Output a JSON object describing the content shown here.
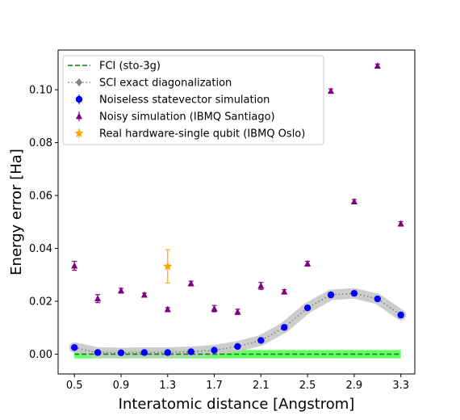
{
  "chart_data": {
    "type": "scatter",
    "xlabel": "Interatomic distance [Angstrom]",
    "ylabel": "Energy error [Ha]",
    "xlim": [
      0.36,
      3.42
    ],
    "ylim": [
      -0.0075,
      0.115
    ],
    "x_ticks": [
      0.5,
      0.9,
      1.3,
      1.7,
      2.1,
      2.5,
      2.9,
      3.3
    ],
    "x_tick_labels": [
      "0.5",
      "0.9",
      "1.3",
      "1.7",
      "2.1",
      "2.5",
      "2.9",
      "3.3"
    ],
    "y_ticks": [
      0.0,
      0.02,
      0.04,
      0.06,
      0.08,
      0.1
    ],
    "y_tick_labels": [
      "0.00",
      "0.02",
      "0.04",
      "0.06",
      "0.08",
      "0.10"
    ],
    "grid": false,
    "legend_position": "top-left",
    "series": [
      {
        "name": "FCI (sto-3g)",
        "style": "dashed-line",
        "color": "#008000",
        "band_color": "#66ff66",
        "band_halfwidth": 0.0016,
        "x": [
          0.5,
          3.3
        ],
        "y": [
          0.0,
          0.0
        ]
      },
      {
        "name": "SCI exact diagonalization",
        "style": "dotted-line-diamond",
        "color": "#808080",
        "band_color": "#c8c8c8",
        "x": [
          0.5,
          0.7,
          0.9,
          1.1,
          1.3,
          1.5,
          1.7,
          1.9,
          2.1,
          2.3,
          2.5,
          2.7,
          2.9,
          3.1,
          3.3
        ],
        "y": [
          0.0025,
          0.0006,
          0.0005,
          0.0006,
          0.0006,
          0.0009,
          0.0015,
          0.0029,
          0.0052,
          0.0101,
          0.0175,
          0.0224,
          0.023,
          0.0209,
          0.0148
        ]
      },
      {
        "name": "Noiseless statevector simulation",
        "style": "circle-errorbar",
        "color": "#0000ff",
        "x": [
          0.5,
          0.7,
          0.9,
          1.1,
          1.3,
          1.5,
          1.7,
          1.9,
          2.1,
          2.3,
          2.5,
          2.7,
          2.9,
          3.1,
          3.3
        ],
        "y": [
          0.0025,
          0.0006,
          0.0005,
          0.0006,
          0.0006,
          0.0009,
          0.0015,
          0.0029,
          0.0052,
          0.0101,
          0.0175,
          0.0224,
          0.023,
          0.0209,
          0.0148
        ],
        "err": [
          0.0006,
          0.0005,
          0.0005,
          0.0005,
          0.0005,
          0.0005,
          0.0005,
          0.0006,
          0.0007,
          0.0007,
          0.0008,
          0.0008,
          0.0008,
          0.0008,
          0.0009
        ]
      },
      {
        "name": "Noisy simulation (IBMQ Santiago)",
        "style": "triangle-errorbar",
        "color": "#800080",
        "x": [
          0.5,
          0.7,
          0.9,
          1.1,
          1.3,
          1.5,
          1.7,
          1.9,
          2.1,
          2.3,
          2.5,
          2.7,
          2.9,
          3.1,
          3.3
        ],
        "y": [
          0.0334,
          0.021,
          0.024,
          0.0224,
          0.0169,
          0.0267,
          0.0172,
          0.016,
          0.0258,
          0.0236,
          0.0342,
          0.0995,
          0.0577,
          0.109,
          0.0493
        ],
        "err": [
          0.0017,
          0.0015,
          0.0009,
          0.0007,
          0.0007,
          0.0009,
          0.0012,
          0.001,
          0.0013,
          0.0008,
          0.0009,
          0.0008,
          0.0008,
          0.0007,
          0.0008
        ]
      },
      {
        "name": "Real hardware-single qubit (IBMQ Oslo)",
        "style": "star-errorbar",
        "color": "#ffa500",
        "x": [
          1.3
        ],
        "y": [
          0.0332
        ],
        "err": [
          0.0063
        ]
      }
    ]
  }
}
